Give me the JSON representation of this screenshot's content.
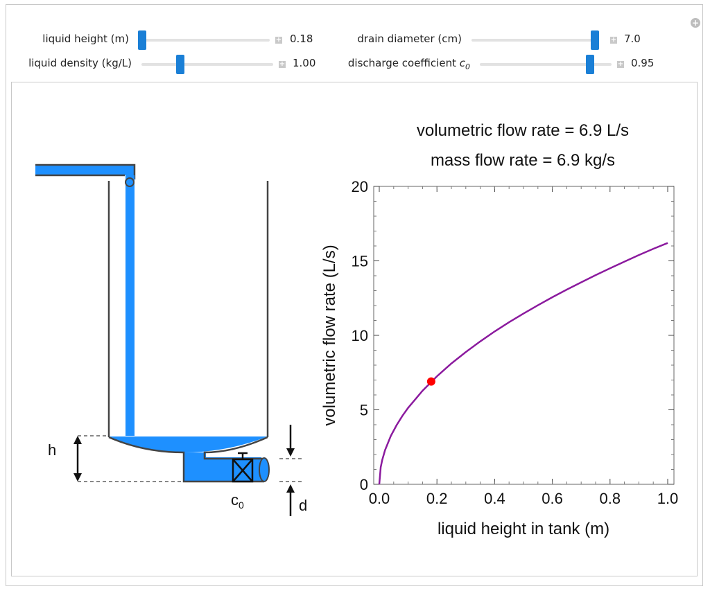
{
  "controls": [
    {
      "id": "liquid-height",
      "label": "liquid height (m)",
      "value": "0.18",
      "fraction": 0.0
    },
    {
      "id": "drain-diameter",
      "label": "drain diameter (cm)",
      "value": "7.0",
      "fraction": 1.0
    },
    {
      "id": "liquid-density",
      "label": "liquid density (kg/L)",
      "value": "1.00",
      "fraction": 0.28
    },
    {
      "id": "discharge-coefficient",
      "label": "discharge coefficient",
      "label_sym": "c",
      "label_sub": "0",
      "value": "0.95",
      "fraction": 0.86
    }
  ],
  "diagram": {
    "h_label": "h",
    "d_label": "d",
    "valve_label": "c",
    "valve_sub": "0",
    "water_color": "#1e90ff"
  },
  "result": {
    "volumetric": "volumetric flow rate = 6.9 L/s",
    "mass": "mass flow rate = 6.9 kg/s"
  },
  "chart_data": {
    "type": "line",
    "xlabel": "liquid height in tank (m)",
    "ylabel": "volumetric flow rate (L/s)",
    "xlim": [
      0,
      1.0
    ],
    "ylim": [
      0,
      20
    ],
    "xticks": [
      "0.0",
      "0.2",
      "0.4",
      "0.6",
      "0.8",
      "1.0"
    ],
    "yticks": [
      "0",
      "5",
      "10",
      "15",
      "20"
    ],
    "series": [
      {
        "x": [
          0.0,
          0.005,
          0.01,
          0.02,
          0.04,
          0.06,
          0.08,
          0.1,
          0.15,
          0.2,
          0.25,
          0.3,
          0.35,
          0.4,
          0.45,
          0.5,
          0.55,
          0.6,
          0.65,
          0.7,
          0.75,
          0.8,
          0.85,
          0.9,
          0.95,
          1.0
        ],
        "y": [
          0.0,
          1.15,
          1.62,
          2.29,
          3.24,
          3.97,
          4.59,
          5.13,
          6.28,
          7.25,
          8.11,
          8.88,
          9.59,
          10.26,
          10.88,
          11.46,
          12.02,
          12.56,
          13.07,
          13.56,
          14.04,
          14.5,
          14.95,
          15.39,
          15.81,
          16.2
        ],
        "color": "#8b1a9e"
      }
    ],
    "marker": {
      "x": 0.18,
      "y": 6.9,
      "color": "#ff0000"
    }
  }
}
